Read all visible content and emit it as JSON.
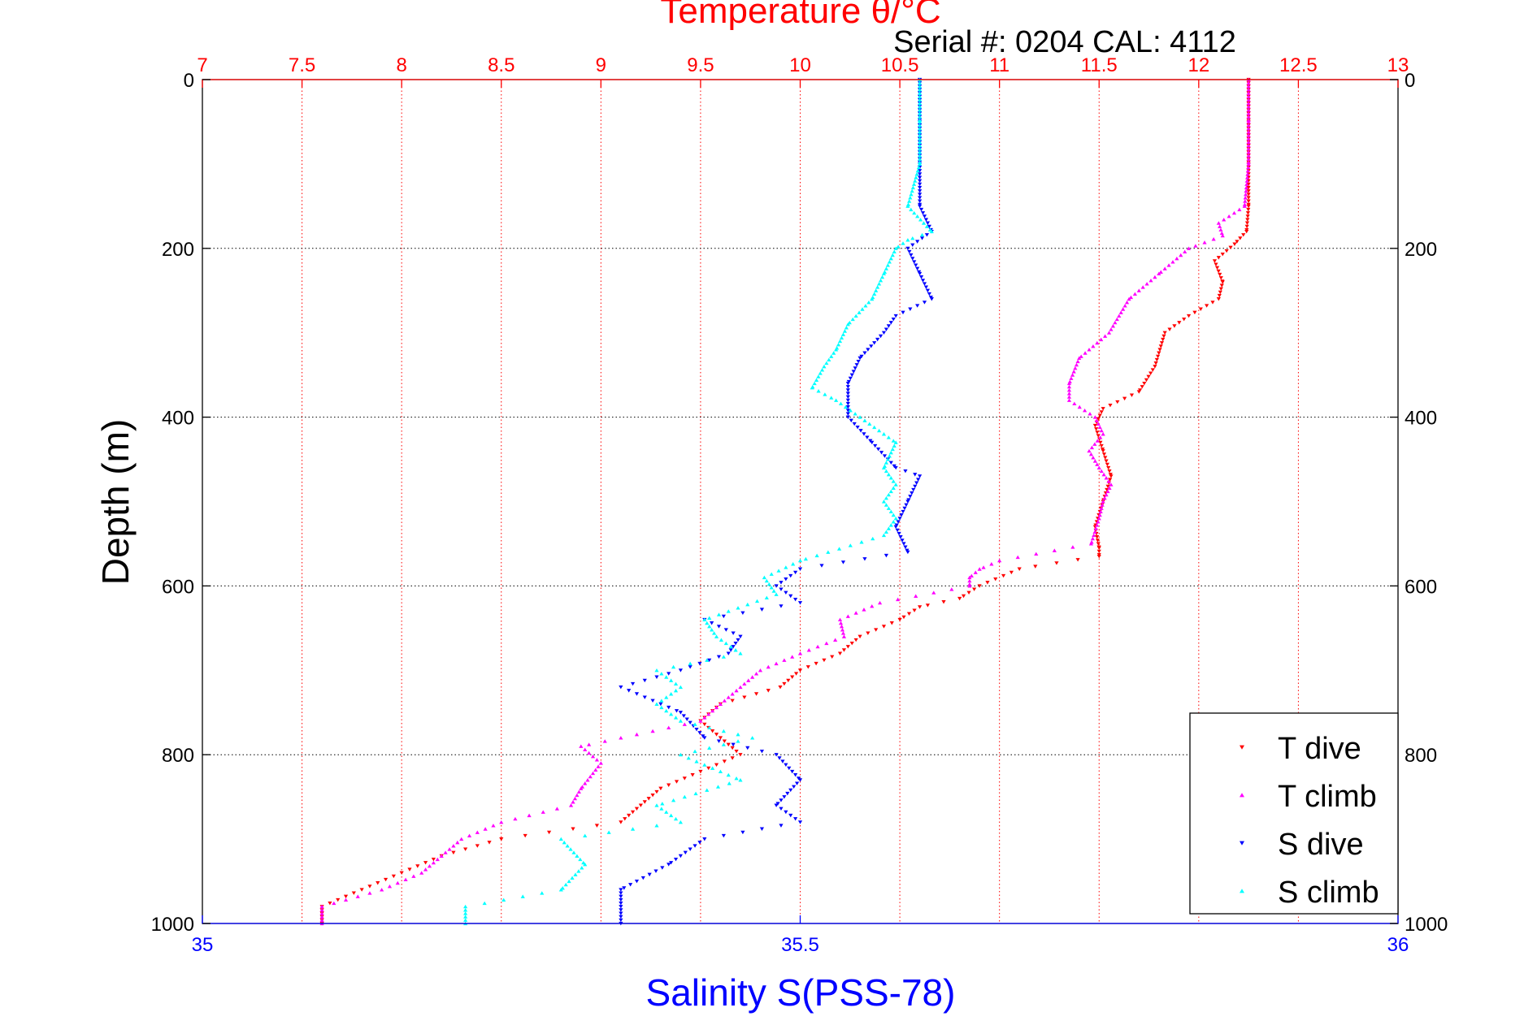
{
  "chart_data": {
    "type": "scatter",
    "title": "Temperature θ/°C",
    "subtitle": "Serial #: 0204  CAL: 4112",
    "xlabel": "Salinity S(PSS-78)",
    "ylabel": "Depth (m)",
    "temperature_axis": {
      "range": [
        7,
        13
      ],
      "ticks": [
        "7",
        "7.5",
        "8",
        "8.5",
        "9",
        "9.5",
        "10",
        "10.5",
        "11",
        "11.5",
        "12",
        "12.5",
        "13"
      ]
    },
    "salinity_axis": {
      "range": [
        35,
        36
      ],
      "ticks": [
        "35",
        "35.5",
        "36"
      ]
    },
    "depth_axis": {
      "range": [
        0,
        1000
      ],
      "reversed": true,
      "ticks": [
        "0",
        "200",
        "400",
        "600",
        "800",
        "1000"
      ]
    },
    "grid": true,
    "legend_position": "bottom-right",
    "series": [
      {
        "name": "T dive",
        "axis": "temperature",
        "color": "#ff0000",
        "marker": "triangle-down",
        "depth": [
          0,
          50,
          100,
          150,
          180,
          195,
          215,
          240,
          260,
          280,
          300,
          340,
          370,
          390,
          410,
          440,
          470,
          500,
          530,
          555,
          565,
          580,
          600,
          615,
          625,
          640,
          660,
          680,
          700,
          720,
          740,
          760,
          780,
          800,
          820,
          840,
          860,
          880,
          900,
          920,
          940,
          960,
          980,
          1000
        ],
        "values": [
          12.25,
          12.25,
          12.25,
          12.25,
          12.24,
          12.18,
          12.08,
          12.12,
          12.1,
          11.95,
          11.83,
          11.78,
          11.7,
          11.52,
          11.48,
          11.52,
          11.56,
          11.52,
          11.48,
          11.5,
          11.5,
          11.1,
          10.9,
          10.8,
          10.6,
          10.5,
          10.3,
          10.2,
          10.0,
          9.9,
          9.6,
          9.5,
          9.6,
          9.7,
          9.5,
          9.3,
          9.2,
          9.1,
          8.5,
          8.2,
          8.0,
          7.8,
          7.6,
          7.6
        ]
      },
      {
        "name": "T climb",
        "axis": "temperature",
        "color": "#ff00ff",
        "marker": "triangle-up",
        "depth": [
          0,
          50,
          100,
          150,
          170,
          185,
          200,
          230,
          260,
          300,
          330,
          360,
          380,
          400,
          420,
          440,
          460,
          480,
          500,
          520,
          550,
          570,
          580,
          590,
          600,
          620,
          640,
          660,
          680,
          700,
          720,
          740,
          760,
          790,
          810,
          840,
          860,
          880,
          900,
          920,
          940,
          960,
          980,
          1000
        ],
        "values": [
          12.25,
          12.25,
          12.25,
          12.23,
          12.1,
          12.12,
          11.95,
          11.8,
          11.65,
          11.55,
          11.4,
          11.35,
          11.35,
          11.48,
          11.52,
          11.45,
          11.5,
          11.56,
          11.52,
          11.5,
          11.46,
          11.0,
          10.9,
          10.85,
          10.85,
          10.4,
          10.2,
          10.22,
          10.0,
          9.8,
          9.7,
          9.6,
          9.5,
          8.9,
          9.0,
          8.9,
          8.85,
          8.5,
          8.3,
          8.2,
          8.1,
          7.9,
          7.6,
          7.6
        ]
      },
      {
        "name": "S dive",
        "axis": "salinity",
        "color": "#0000ff",
        "marker": "triangle-down",
        "depth": [
          0,
          50,
          100,
          150,
          180,
          200,
          230,
          260,
          280,
          300,
          330,
          360,
          400,
          430,
          460,
          470,
          500,
          530,
          560,
          580,
          600,
          620,
          640,
          660,
          680,
          700,
          720,
          750,
          780,
          800,
          830,
          860,
          880,
          900,
          930,
          960,
          1000
        ],
        "values": [
          35.6,
          35.6,
          35.6,
          35.6,
          35.61,
          35.59,
          35.6,
          35.61,
          35.58,
          35.57,
          35.55,
          35.54,
          35.54,
          35.56,
          35.58,
          35.6,
          35.59,
          35.58,
          35.59,
          35.5,
          35.48,
          35.5,
          35.42,
          35.45,
          35.44,
          35.4,
          35.35,
          35.4,
          35.42,
          35.48,
          35.5,
          35.48,
          35.5,
          35.42,
          35.39,
          35.35,
          35.35
        ]
      },
      {
        "name": "S climb",
        "axis": "salinity",
        "color": "#00ffff",
        "marker": "triangle-up",
        "depth": [
          0,
          50,
          100,
          150,
          180,
          190,
          200,
          230,
          260,
          290,
          320,
          340,
          365,
          380,
          400,
          430,
          460,
          480,
          500,
          520,
          540,
          570,
          590,
          610,
          640,
          660,
          680,
          700,
          720,
          740,
          760,
          780,
          800,
          830,
          860,
          880,
          900,
          930,
          960,
          980,
          1000
        ],
        "values": [
          35.6,
          35.6,
          35.6,
          35.59,
          35.61,
          35.59,
          35.58,
          35.57,
          35.56,
          35.54,
          35.53,
          35.52,
          35.51,
          35.53,
          35.55,
          35.58,
          35.57,
          35.58,
          35.57,
          35.58,
          35.57,
          35.5,
          35.47,
          35.48,
          35.42,
          35.43,
          35.45,
          35.38,
          35.4,
          35.38,
          35.4,
          35.46,
          35.4,
          35.45,
          35.38,
          35.4,
          35.3,
          35.32,
          35.3,
          35.22,
          35.22
        ]
      }
    ]
  }
}
